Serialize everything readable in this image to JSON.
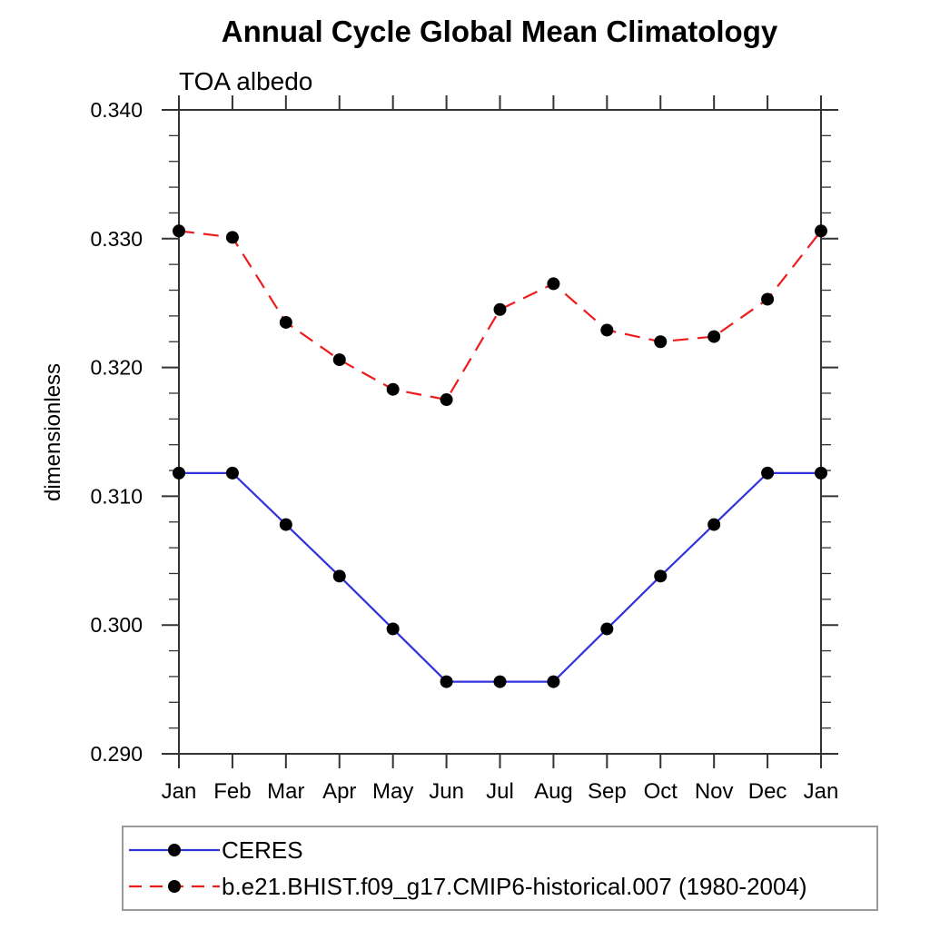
{
  "page": {
    "background": "#ffffff"
  },
  "chart_data": {
    "type": "line",
    "title": "Annual Cycle Global Mean Climatology",
    "subtitle": "TOA albedo",
    "ylabel": "dimensionless",
    "x_categories": [
      "Jan",
      "Feb",
      "Mar",
      "Apr",
      "May",
      "Jun",
      "Jul",
      "Aug",
      "Sep",
      "Oct",
      "Nov",
      "Dec",
      "Jan"
    ],
    "ylim": [
      0.29,
      0.34
    ],
    "ytick_major_interval": 0.01,
    "ytick_minor_interval": 0.002,
    "ytick_labels": [
      "0.290",
      "0.300",
      "0.310",
      "0.320",
      "0.330",
      "0.340"
    ],
    "grid": false,
    "legend_position": "bottom-left boxed",
    "frame_color": "#333333",
    "marker_color": "#000000",
    "series": [
      {
        "name": "CERES",
        "color": "#3232dd",
        "line_style": "solid",
        "marker": "filled-circle",
        "values": [
          0.3118,
          0.3118,
          0.3078,
          0.3038,
          0.2997,
          0.2956,
          0.2956,
          0.2956,
          0.2997,
          0.3038,
          0.3078,
          0.3118,
          0.3118
        ]
      },
      {
        "name": "b.e21.BHIST.f09_g17.CMIP6-historical.007 (1980-2004)",
        "color": "#ee1c1c",
        "line_style": "dashed",
        "marker": "filled-circle",
        "values": [
          0.3306,
          0.3301,
          0.3235,
          0.3206,
          0.3183,
          0.3175,
          0.3245,
          0.3265,
          0.3229,
          0.322,
          0.3224,
          0.3253,
          0.3306
        ]
      }
    ]
  }
}
